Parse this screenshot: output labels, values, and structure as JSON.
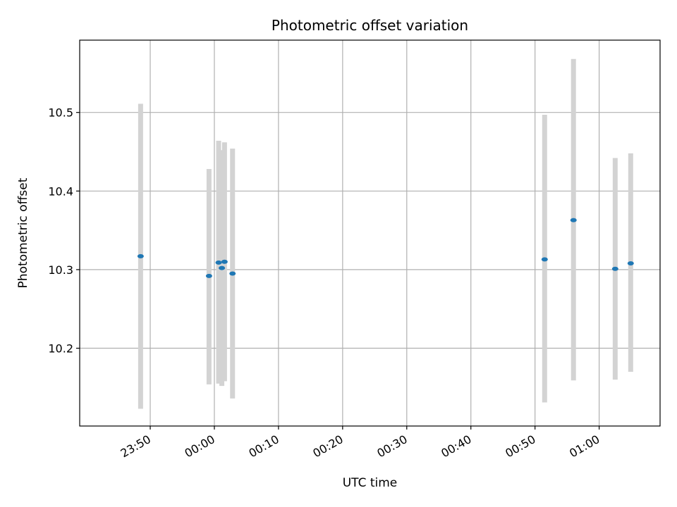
{
  "chart_data": {
    "type": "scatter",
    "title": "Photometric offset variation",
    "xlabel": "UTC time",
    "ylabel": "Photometric offset",
    "x_axis_kind": "time",
    "xlim": [
      "23:39:00",
      "01:09:30"
    ],
    "ylim": [
      10.101,
      10.592
    ],
    "grid": true,
    "x_ticks": [
      "23:50",
      "00:00",
      "00:10",
      "00:20",
      "00:30",
      "00:40",
      "00:50",
      "01:00"
    ],
    "y_ticks": [
      10.2,
      10.3,
      10.4,
      10.5
    ],
    "marker_color": "#1f77b4",
    "errorbar_color": "#d3d3d3",
    "points": [
      {
        "x": "23:48:30",
        "y": 10.317,
        "ylow": 10.123,
        "yhigh": 10.511
      },
      {
        "x": "23:59:10",
        "y": 10.292,
        "ylow": 10.154,
        "yhigh": 10.428
      },
      {
        "x": "00:00:40",
        "y": 10.309,
        "ylow": 10.155,
        "yhigh": 10.464
      },
      {
        "x": "00:01:10",
        "y": 10.302,
        "ylow": 10.152,
        "yhigh": 10.452
      },
      {
        "x": "00:01:35",
        "y": 10.31,
        "ylow": 10.158,
        "yhigh": 10.462
      },
      {
        "x": "00:02:50",
        "y": 10.295,
        "ylow": 10.136,
        "yhigh": 10.454
      },
      {
        "x": "00:51:30",
        "y": 10.313,
        "ylow": 10.131,
        "yhigh": 10.497
      },
      {
        "x": "00:56:00",
        "y": 10.363,
        "ylow": 10.159,
        "yhigh": 10.568
      },
      {
        "x": "01:02:30",
        "y": 10.301,
        "ylow": 10.16,
        "yhigh": 10.442
      },
      {
        "x": "01:04:55",
        "y": 10.308,
        "ylow": 10.17,
        "yhigh": 10.448
      }
    ]
  }
}
